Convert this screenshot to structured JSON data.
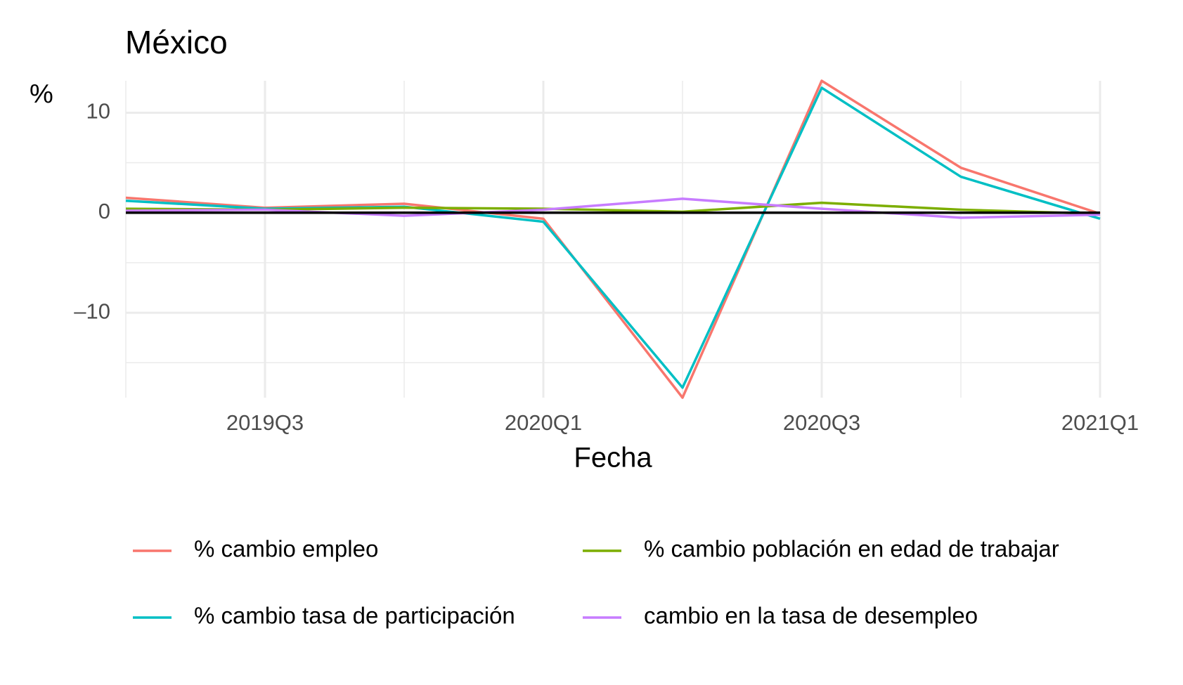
{
  "chart_data": {
    "type": "line",
    "title": "México",
    "y_label": "%",
    "x_label": "Fecha",
    "categories": [
      null,
      "2019Q3",
      null,
      "2020Q1",
      null,
      "2020Q3",
      null,
      "2021Q1"
    ],
    "series": [
      {
        "name": "% cambio empleo",
        "color": "#F8766D",
        "values": [
          1.5,
          0.5,
          0.9,
          -0.6,
          -18.5,
          13.2,
          4.5,
          -0.1
        ]
      },
      {
        "name": "% cambio tasa de participación",
        "color": "#00BFC4",
        "values": [
          1.2,
          0.4,
          0.6,
          -0.9,
          -17.5,
          12.5,
          3.6,
          -0.6
        ]
      },
      {
        "name": "% cambio población en edad de trabajar",
        "color": "#7CAE00",
        "values": [
          0.4,
          0.3,
          0.5,
          0.4,
          0.1,
          1.0,
          0.3,
          -0.1
        ]
      },
      {
        "name": "cambio en la tasa de desempleo",
        "color": "#C77CFF",
        "values": [
          0.2,
          0.3,
          -0.3,
          0.3,
          1.4,
          0.4,
          -0.5,
          -0.2
        ]
      }
    ],
    "ylim": [
      -18.5,
      13.2
    ],
    "yticks": [
      {
        "value": -10,
        "label": "–10"
      },
      0,
      10
    ],
    "hline": 0,
    "grid": true,
    "legend": "bottom"
  }
}
